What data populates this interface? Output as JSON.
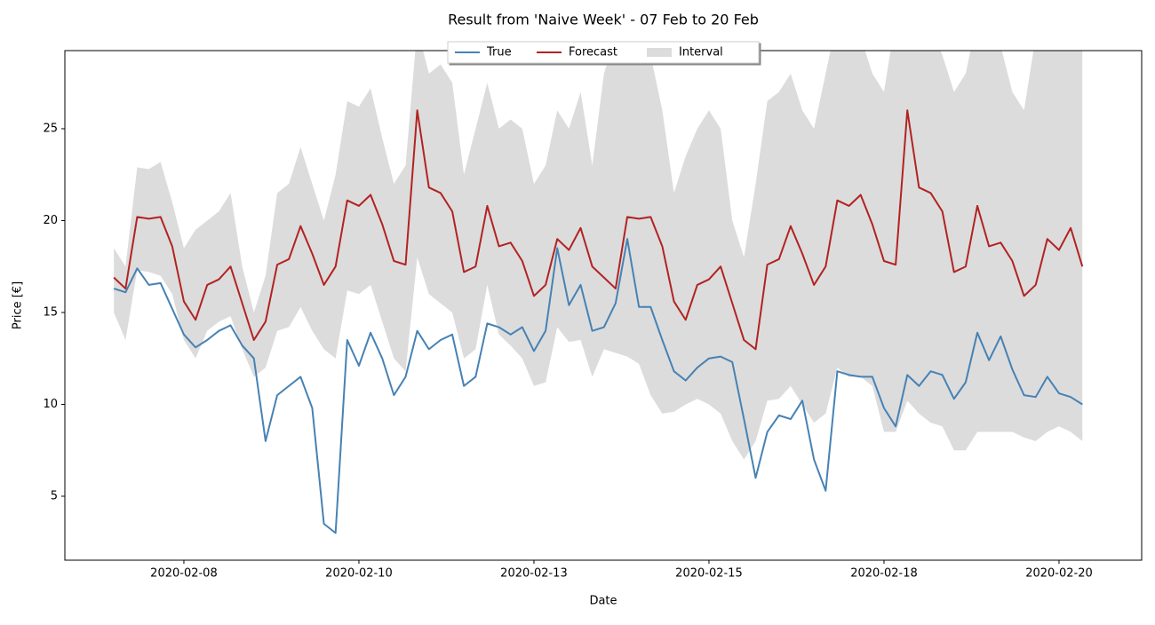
{
  "chart_data": {
    "type": "line",
    "title": "Result from 'Naive Week' - 07 Feb to 20 Feb",
    "x_label": "Date",
    "y_label": "Price [€]",
    "legend": "upper center",
    "x": [
      "2020-02-07T00:00",
      "2020-02-07T04:00",
      "2020-02-07T08:00",
      "2020-02-07T12:00",
      "2020-02-07T16:00",
      "2020-02-07T20:00",
      "2020-02-08T00:00",
      "2020-02-08T04:00",
      "2020-02-08T08:00",
      "2020-02-08T12:00",
      "2020-02-08T16:00",
      "2020-02-08T20:00",
      "2020-02-09T00:00",
      "2020-02-09T04:00",
      "2020-02-09T08:00",
      "2020-02-09T12:00",
      "2020-02-09T16:00",
      "2020-02-09T20:00",
      "2020-02-10T00:00",
      "2020-02-10T04:00",
      "2020-02-10T08:00",
      "2020-02-10T12:00",
      "2020-02-10T16:00",
      "2020-02-10T20:00",
      "2020-02-11T00:00",
      "2020-02-11T04:00",
      "2020-02-11T08:00",
      "2020-02-11T12:00",
      "2020-02-11T16:00",
      "2020-02-11T20:00",
      "2020-02-12T00:00",
      "2020-02-12T04:00",
      "2020-02-12T08:00",
      "2020-02-12T12:00",
      "2020-02-12T16:00",
      "2020-02-12T20:00",
      "2020-02-13T00:00",
      "2020-02-13T04:00",
      "2020-02-13T08:00",
      "2020-02-13T12:00",
      "2020-02-13T16:00",
      "2020-02-13T20:00",
      "2020-02-14T00:00",
      "2020-02-14T04:00",
      "2020-02-14T08:00",
      "2020-02-14T12:00",
      "2020-02-14T16:00",
      "2020-02-14T20:00",
      "2020-02-15T00:00",
      "2020-02-15T04:00",
      "2020-02-15T08:00",
      "2020-02-15T12:00",
      "2020-02-15T16:00",
      "2020-02-15T20:00",
      "2020-02-16T00:00",
      "2020-02-16T04:00",
      "2020-02-16T08:00",
      "2020-02-16T12:00",
      "2020-02-16T16:00",
      "2020-02-16T20:00",
      "2020-02-17T00:00",
      "2020-02-17T04:00",
      "2020-02-17T08:00",
      "2020-02-17T12:00",
      "2020-02-17T16:00",
      "2020-02-17T20:00",
      "2020-02-18T00:00",
      "2020-02-18T04:00",
      "2020-02-18T08:00",
      "2020-02-18T12:00",
      "2020-02-18T16:00",
      "2020-02-18T20:00",
      "2020-02-19T00:00",
      "2020-02-19T04:00",
      "2020-02-19T08:00",
      "2020-02-19T12:00",
      "2020-02-19T16:00",
      "2020-02-19T20:00",
      "2020-02-20T00:00",
      "2020-02-20T04:00",
      "2020-02-20T08:00",
      "2020-02-20T12:00",
      "2020-02-20T16:00",
      "2020-02-20T20:00"
    ],
    "series": [
      {
        "name": "True",
        "color": "#4682b4",
        "values": [
          16.3,
          16.1,
          17.4,
          16.5,
          16.6,
          15.2,
          13.8,
          13.1,
          13.5,
          14.0,
          14.3,
          13.2,
          12.5,
          8.0,
          10.5,
          11.0,
          11.5,
          9.8,
          3.5,
          3.0,
          13.5,
          12.1,
          13.9,
          12.5,
          10.5,
          11.5,
          14.0,
          13.0,
          13.5,
          13.8,
          11.0,
          11.5,
          14.4,
          14.2,
          13.8,
          14.2,
          12.9,
          14.0,
          18.5,
          15.4,
          16.5,
          14.0,
          14.2,
          15.5,
          19.0,
          15.3,
          15.3,
          13.5,
          11.8,
          11.3,
          12.0,
          12.5,
          12.6,
          12.3,
          9.2,
          6.0,
          8.5,
          9.4,
          9.2,
          10.2,
          7.0,
          5.3,
          11.8,
          11.6,
          11.5,
          11.5,
          9.8,
          8.8,
          11.6,
          11.0,
          11.8,
          11.6,
          10.3,
          11.2,
          13.9,
          12.4,
          13.7,
          11.9,
          10.5,
          10.4,
          11.5,
          10.6,
          10.4,
          10.0
        ]
      },
      {
        "name": "Forecast",
        "color": "#b22222",
        "values": [
          16.9,
          16.3,
          20.2,
          20.1,
          20.2,
          18.6,
          15.6,
          14.6,
          16.5,
          16.8,
          17.5,
          15.5,
          13.5,
          14.5,
          17.6,
          17.9,
          19.7,
          18.2,
          16.5,
          17.5,
          21.1,
          20.8,
          21.4,
          19.8,
          17.8,
          17.6,
          26.0,
          21.8,
          21.5,
          20.5,
          17.2,
          17.5,
          20.8,
          18.6,
          18.8,
          17.8,
          15.9,
          16.5,
          19.0,
          18.4,
          19.6,
          17.5,
          16.9,
          16.3,
          20.2,
          20.1,
          20.2,
          18.6,
          15.6,
          14.6,
          16.5,
          16.8,
          17.5,
          15.5,
          13.5,
          13.0,
          17.6,
          17.9,
          19.7,
          18.2,
          16.5,
          17.5,
          21.1,
          20.8,
          21.4,
          19.8,
          17.8,
          17.6,
          26.0,
          21.8,
          21.5,
          20.5,
          17.2,
          17.5,
          20.8,
          18.6,
          18.8,
          17.8,
          15.9,
          16.5,
          19.0,
          18.4,
          19.6,
          17.5
        ]
      },
      {
        "name": "Interval",
        "type": "band",
        "color": "#dcdcdc",
        "lower": [
          15.0,
          13.5,
          17.3,
          17.2,
          17.0,
          16.0,
          13.5,
          12.5,
          14.0,
          14.5,
          14.8,
          13.0,
          11.5,
          12.0,
          14.0,
          14.2,
          15.3,
          14.0,
          13.0,
          12.5,
          16.2,
          16.0,
          16.5,
          14.5,
          12.5,
          11.8,
          18.0,
          16.0,
          15.5,
          15.0,
          12.5,
          13.0,
          16.5,
          13.8,
          13.2,
          12.5,
          11.0,
          11.2,
          14.2,
          13.4,
          13.5,
          11.5,
          13.0,
          12.8,
          12.6,
          12.2,
          10.5,
          9.5,
          9.6,
          10.0,
          10.3,
          10.0,
          9.5,
          8.0,
          7.0,
          8.0,
          10.2,
          10.3,
          11.0,
          10.0,
          9.0,
          9.5,
          12.0,
          11.5,
          11.5,
          11.0,
          8.5,
          8.5,
          10.2,
          9.5,
          9.0,
          8.8,
          7.5,
          7.5,
          8.5,
          8.5,
          8.5,
          8.5,
          8.2,
          8.0,
          8.5,
          8.8,
          8.5,
          8.0
        ],
        "upper": [
          18.5,
          17.5,
          22.9,
          22.8,
          23.2,
          21.0,
          18.5,
          19.5,
          20.0,
          20.5,
          21.5,
          17.5,
          15.0,
          17.0,
          21.5,
          22.0,
          24.0,
          22.0,
          20.0,
          22.5,
          26.5,
          26.2,
          27.2,
          24.5,
          22.0,
          23.0,
          30.5,
          28.0,
          28.5,
          27.5,
          22.5,
          25.0,
          27.5,
          25.0,
          25.5,
          25.0,
          22.0,
          23.0,
          26.0,
          25.0,
          27.0,
          23.0,
          28.0,
          30.0,
          31.0,
          29.0,
          29.0,
          26.0,
          21.5,
          23.5,
          25.0,
          26.0,
          25.0,
          20.0,
          18.0,
          22.0,
          26.5,
          27.0,
          28.0,
          26.0,
          25.0,
          28.0,
          31.0,
          30.5,
          30.0,
          28.0,
          27.0,
          31.0,
          32.0,
          31.0,
          30.5,
          29.0,
          27.0,
          28.0,
          31.0,
          30.0,
          29.5,
          27.0,
          26.0,
          30.0,
          32.0,
          32.0,
          32.0,
          32.0
        ]
      }
    ],
    "xlim": [
      "2020-02-06T07:12",
      "2020-02-21T16:20"
    ],
    "xticks": [
      {
        "value": "2020-02-08T00:00",
        "label": "2020-02-08"
      },
      {
        "value": "2020-02-10T12:00",
        "label": "2020-02-10"
      },
      {
        "value": "2020-02-13T00:00",
        "label": "2020-02-13"
      },
      {
        "value": "2020-02-15T12:00",
        "label": "2020-02-15"
      },
      {
        "value": "2020-02-18T00:00",
        "label": "2020-02-18"
      },
      {
        "value": "2020-02-20T12:00",
        "label": "2020-02-20"
      }
    ],
    "ylim": [
      1.52,
      29.25
    ],
    "yticks": [
      5,
      10,
      15,
      20,
      25
    ],
    "grid": false
  }
}
